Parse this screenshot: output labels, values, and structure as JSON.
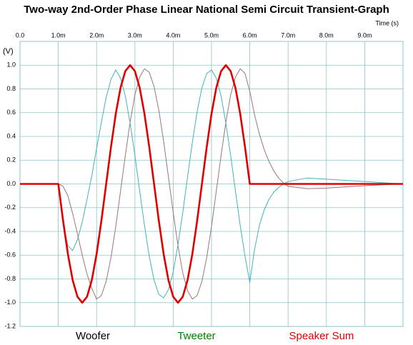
{
  "chart_data": {
    "type": "line",
    "title": "Two-way 2nd-Order  Phase Linear National Semi Circuit Transient-Graph",
    "ylabel": "(V)",
    "xlabel": "Time   (s)",
    "xlim": [
      0,
      0.01
    ],
    "ylim": [
      -1.2,
      1.2
    ],
    "grid": true,
    "xticks": [
      {
        "value": 0,
        "label": "0.0"
      },
      {
        "value": 0.001,
        "label": "1.0m"
      },
      {
        "value": 0.002,
        "label": "2.0m"
      },
      {
        "value": 0.003,
        "label": "3.0m"
      },
      {
        "value": 0.004,
        "label": "4.0m"
      },
      {
        "value": 0.005,
        "label": "5.0m"
      },
      {
        "value": 0.006,
        "label": "6.0m"
      },
      {
        "value": 0.007,
        "label": "7.0m"
      },
      {
        "value": 0.008,
        "label": "8.0m"
      },
      {
        "value": 0.009,
        "label": "9.0m"
      }
    ],
    "yticks": [
      -1.2,
      {
        "value": -1,
        "label": "-1.0"
      },
      -0.8,
      -0.6,
      -0.4,
      -0.2,
      {
        "value": 0,
        "label": "0.0"
      },
      0.2,
      0.4,
      0.6,
      0.8,
      {
        "value": 1,
        "label": "1.0"
      }
    ],
    "x": [
      0,
      0.001,
      0.001125,
      0.00125,
      0.001375,
      0.0015,
      0.001625,
      0.00175,
      0.001875,
      0.002,
      0.002125,
      0.00225,
      0.002375,
      0.0025,
      0.002625,
      0.00275,
      0.002875,
      0.003,
      0.003125,
      0.00325,
      0.003375,
      0.0035,
      0.003625,
      0.00375,
      0.003875,
      0.004,
      0.004125,
      0.00425,
      0.004375,
      0.0045,
      0.004625,
      0.00475,
      0.004875,
      0.005,
      0.005125,
      0.00525,
      0.005375,
      0.0055,
      0.005625,
      0.00575,
      0.005875,
      0.006,
      0.006125,
      0.00625,
      0.006375,
      0.0065,
      0.006625,
      0.00675,
      0.006875,
      0.007,
      0.0075,
      0.008,
      0.0085,
      0.009,
      0.0095,
      0.01
    ],
    "series": [
      {
        "name": "Woofer",
        "color": "#a07272",
        "legend_color": "#000000",
        "values": [
          0,
          0,
          -0.02,
          -0.1,
          -0.25,
          -0.42,
          -0.6,
          -0.76,
          -0.88,
          -0.97,
          -0.94,
          -0.82,
          -0.62,
          -0.36,
          -0.06,
          0.24,
          0.52,
          0.75,
          0.9,
          0.97,
          0.94,
          0.82,
          0.62,
          0.36,
          0.06,
          -0.24,
          -0.52,
          -0.75,
          -0.9,
          -0.97,
          -0.94,
          -0.82,
          -0.62,
          -0.36,
          -0.06,
          0.24,
          0.52,
          0.75,
          0.9,
          0.97,
          0.93,
          0.78,
          0.58,
          0.42,
          0.29,
          0.19,
          0.11,
          0.05,
          0.01,
          -0.02,
          -0.04,
          -0.035,
          -0.025,
          -0.015,
          -0.007,
          0
        ]
      },
      {
        "name": "Tweeter",
        "color": "#3fb4bc",
        "legend_color": "#008000",
        "values": [
          0,
          0,
          -0.35,
          -0.52,
          -0.56,
          -0.47,
          -0.32,
          -0.13,
          0.07,
          0.3,
          0.52,
          0.73,
          0.88,
          0.96,
          0.89,
          0.74,
          0.51,
          0.24,
          -0.06,
          -0.35,
          -0.61,
          -0.81,
          -0.93,
          -0.96,
          -0.89,
          -0.74,
          -0.51,
          -0.24,
          0.06,
          0.35,
          0.61,
          0.81,
          0.93,
          0.96,
          0.89,
          0.74,
          0.51,
          0.24,
          -0.06,
          -0.35,
          -0.61,
          -0.83,
          -0.55,
          -0.35,
          -0.22,
          -0.13,
          -0.07,
          -0.03,
          0,
          0.02,
          0.05,
          0.04,
          0.03,
          0.02,
          0.01,
          0
        ]
      },
      {
        "name": "Speaker Sum",
        "color": "#e00000",
        "legend_color": "#e00000",
        "values": [
          0,
          0,
          -0.31,
          -0.59,
          -0.81,
          -0.95,
          -1,
          -0.95,
          -0.81,
          -0.59,
          -0.31,
          0,
          0.31,
          0.59,
          0.81,
          0.95,
          1,
          0.95,
          0.81,
          0.59,
          0.31,
          0,
          -0.31,
          -0.59,
          -0.81,
          -0.95,
          -1,
          -0.95,
          -0.81,
          -0.59,
          -0.31,
          0,
          0.31,
          0.59,
          0.81,
          0.95,
          1,
          0.95,
          0.81,
          0.59,
          0.31,
          0,
          0,
          0,
          0,
          0,
          0,
          0,
          0,
          0,
          0,
          0,
          0,
          0,
          0,
          0
        ]
      }
    ]
  }
}
